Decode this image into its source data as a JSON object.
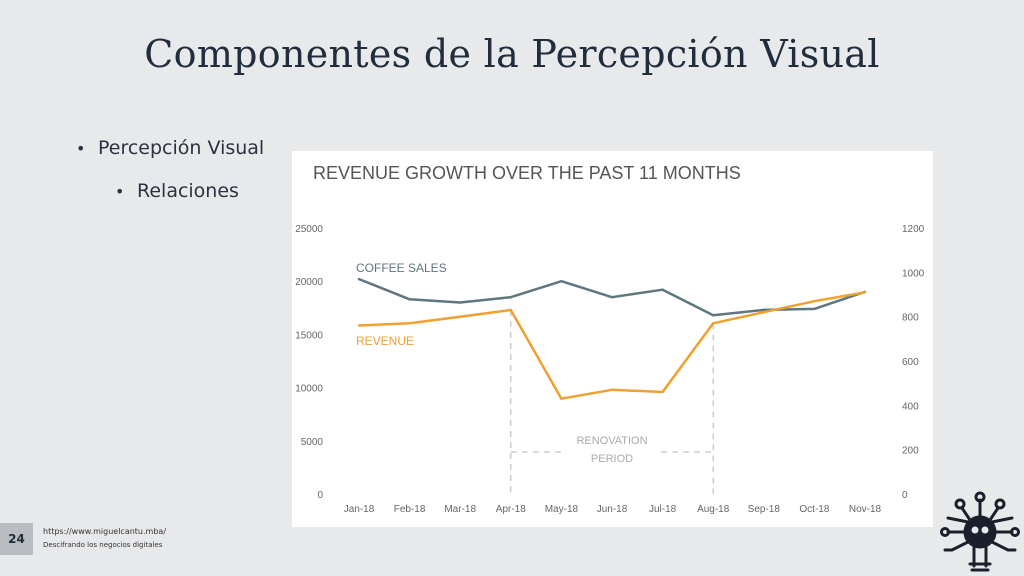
{
  "slide": {
    "title": "Componentes de la Percepción Visual",
    "bullets": [
      {
        "text": "Percepción Visual",
        "level": 1
      },
      {
        "text": "Relaciones",
        "level": 2
      }
    ],
    "page_number": "24",
    "footer_url": "https://www.miguelcantu.mba/",
    "footer_tagline": "Descifrando los negocios digitales",
    "logo_icon": "brain-circuit-icon"
  },
  "chart_data": {
    "type": "line",
    "title": "REVENUE GROWTH OVER THE PAST 11 MONTHS",
    "categories": [
      "Jan-18",
      "Feb-18",
      "Mar-18",
      "Apr-18",
      "May-18",
      "Jun-18",
      "Jul-18",
      "Aug-18",
      "Sep-18",
      "Oct-18",
      "Nov-18"
    ],
    "y_left": {
      "min": 0,
      "max": 25000,
      "ticks": [
        0,
        5000,
        10000,
        15000,
        20000,
        25000
      ]
    },
    "y_right": {
      "min": 0,
      "max": 1200,
      "ticks": [
        0,
        200,
        400,
        600,
        800,
        1000,
        1200
      ]
    },
    "series": [
      {
        "name": "COFFEE SALES",
        "axis": "left",
        "color": "#5f7680",
        "values": [
          20200,
          18300,
          18000,
          18500,
          20000,
          18500,
          19200,
          16800,
          17300,
          17400,
          19000
        ]
      },
      {
        "name": "REVENUE",
        "axis": "right",
        "color": "#f0a030",
        "values": [
          760,
          770,
          800,
          830,
          430,
          470,
          460,
          770,
          820,
          870,
          910
        ]
      }
    ],
    "annotation": {
      "lines": [
        "RENOVATION",
        "PERIOD"
      ],
      "from": "Apr-18",
      "to": "Aug-18"
    },
    "colors": {
      "axis_text": "#666666",
      "title": "#555555",
      "annotation": "#aaaaaa"
    }
  }
}
